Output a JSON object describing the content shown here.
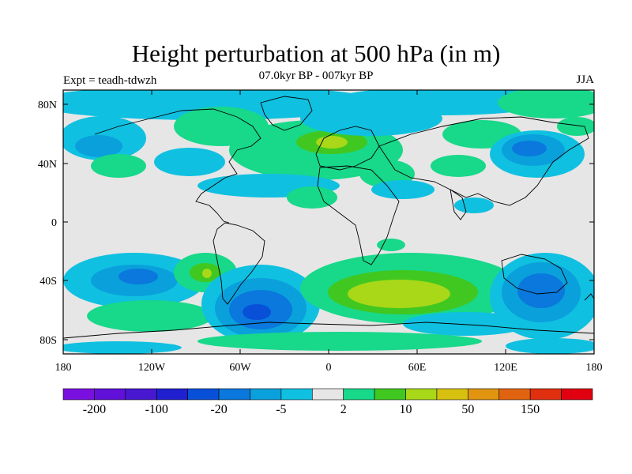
{
  "title": "Height perturbation at 500 hPa (in m)",
  "subtitle": "07.0kyr BP - 007kyr BP",
  "left_label": "Expt = teadh-tdwzh",
  "season": "JJA",
  "lat_ticks": [
    "80N",
    "40N",
    "0",
    "40S",
    "80S"
  ],
  "lon_ticks": [
    "180",
    "120W",
    "60W",
    "0",
    "60E",
    "120E",
    "180"
  ],
  "colorbar": {
    "colors": [
      "#7a10e0",
      "#6010d8",
      "#4818d0",
      "#2020d0",
      "#0850d8",
      "#0a78dc",
      "#0aa0dc",
      "#10c0e0",
      "#e6e6e6",
      "#18d88a",
      "#40c820",
      "#a8d818",
      "#d8c010",
      "#e09410",
      "#e06410",
      "#e03010",
      "#e00010"
    ],
    "labels": [
      "-200",
      "-100",
      "-20",
      "-5",
      "2",
      "10",
      "50",
      "150"
    ]
  },
  "palette": {
    "ocean_bg": "#e6e6e6",
    "c_neg5": "#10c0e0",
    "c_neg20": "#0aa0dc",
    "c_neg100": "#0a78dc",
    "c_neg200": "#0850d8",
    "c_pos2": "#18d88a",
    "c_pos10": "#40c820",
    "c_pos50": "#a8d818",
    "c_pos150": "#d8c010"
  }
}
